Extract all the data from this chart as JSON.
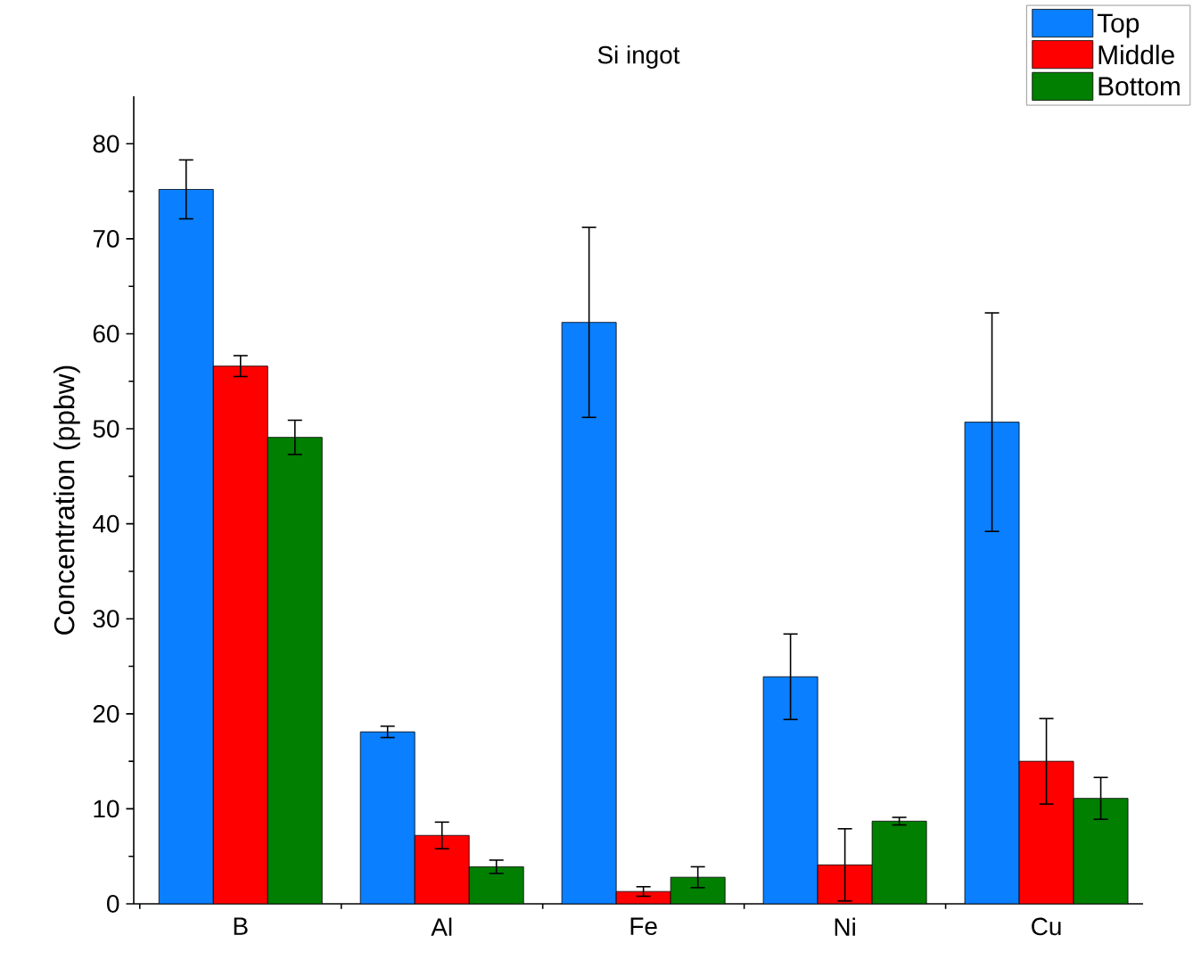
{
  "chart_data": {
    "type": "bar",
    "title": "Si ingot",
    "ylabel": "Concentration (ppbw)",
    "categories": [
      "B",
      "Al",
      "Fe",
      "Ni",
      "Cu"
    ],
    "series": [
      {
        "name": "Top",
        "color": "#0a7fff",
        "values": [
          75.2,
          18.1,
          61.2,
          23.9,
          50.7
        ],
        "errors": [
          3.1,
          0.6,
          10.0,
          4.5,
          11.5
        ]
      },
      {
        "name": "Middle",
        "color": "#ff0000",
        "values": [
          56.6,
          7.2,
          1.3,
          4.1,
          15.0
        ],
        "errors": [
          1.1,
          1.4,
          0.5,
          3.8,
          4.5
        ]
      },
      {
        "name": "Bottom",
        "color": "#007f00",
        "values": [
          49.1,
          3.9,
          2.8,
          8.7,
          11.1
        ],
        "errors": [
          1.8,
          0.7,
          1.1,
          0.4,
          2.2
        ]
      }
    ],
    "ylim": [
      0,
      85
    ],
    "yticks": [
      0,
      10,
      20,
      30,
      40,
      50,
      60,
      70,
      80
    ],
    "grid": false,
    "legend": "top right"
  }
}
